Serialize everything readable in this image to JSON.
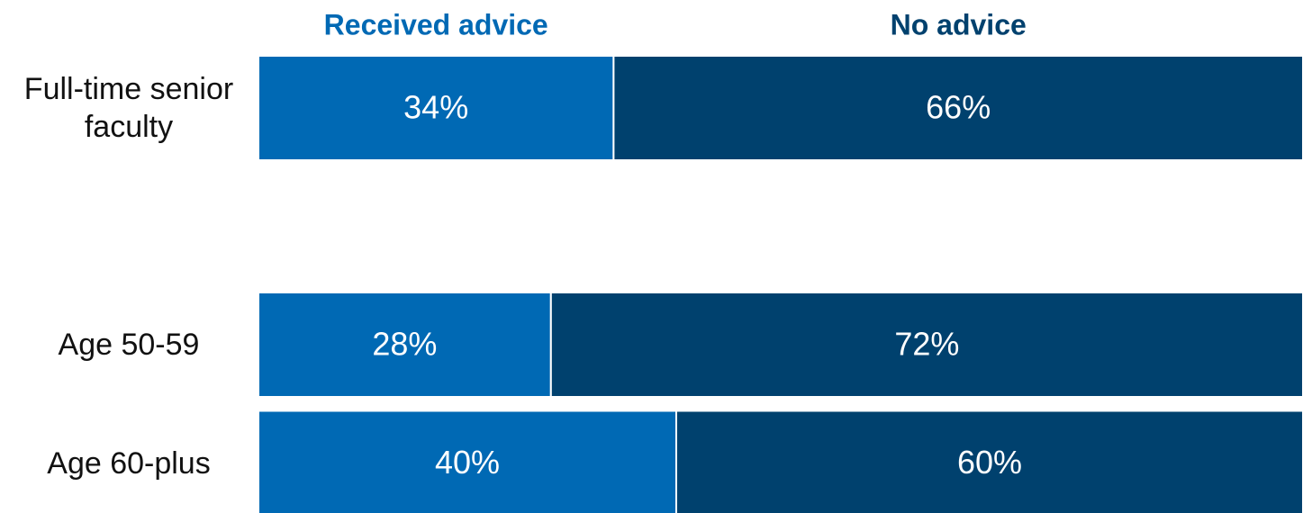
{
  "chart_data": {
    "type": "stacked-bar-horizontal",
    "categories": [
      "Full-time senior faculty",
      null,
      "Age 50-59",
      "Age 60-plus"
    ],
    "series": [
      {
        "name": "Received advice",
        "color": "#0069b4",
        "values": [
          34,
          null,
          28,
          40
        ],
        "value_labels": [
          "34%",
          null,
          "28%",
          "40%"
        ]
      },
      {
        "name": "No advice",
        "color": "#00416e",
        "values": [
          66,
          null,
          72,
          60
        ],
        "value_labels": [
          "66%",
          null,
          "72%",
          "60%"
        ]
      }
    ],
    "xlim": [
      0,
      100
    ]
  }
}
